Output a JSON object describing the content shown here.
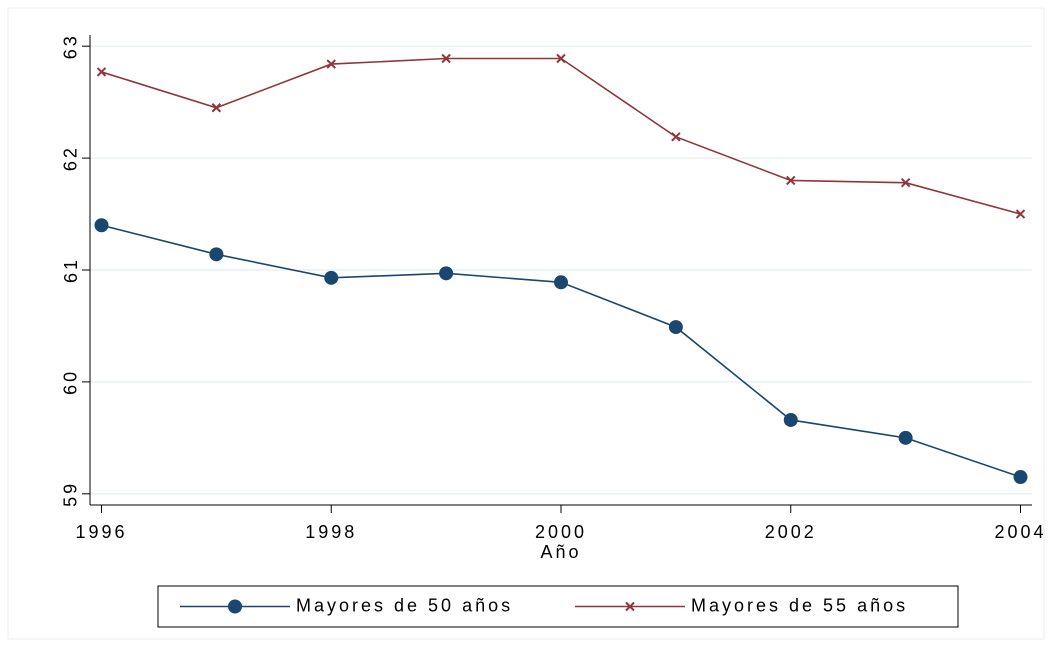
{
  "chart_data": {
    "type": "line",
    "x_label": "Año",
    "x": [
      1996,
      1997,
      1998,
      1999,
      2000,
      2001,
      2002,
      2003,
      2004
    ],
    "series": [
      {
        "name": "Mayores de 50 años",
        "color": "#1a476f",
        "marker": "circle",
        "values": [
          61.4,
          61.14,
          60.93,
          60.97,
          60.89,
          60.49,
          59.66,
          59.5,
          59.15
        ]
      },
      {
        "name": "Mayores de 55 años",
        "color": "#90353b",
        "marker": "x",
        "values": [
          62.77,
          62.45,
          62.84,
          62.89,
          62.89,
          62.19,
          61.8,
          61.78,
          61.5
        ]
      }
    ],
    "xlim": [
      1995.9,
      2004.1
    ],
    "xticks": [
      1996,
      1998,
      2000,
      2002,
      2004
    ],
    "ylim": [
      58.9,
      63.1
    ],
    "yticks": [
      59,
      60,
      61,
      62,
      63
    ],
    "grid": true,
    "legend": "bottom"
  }
}
